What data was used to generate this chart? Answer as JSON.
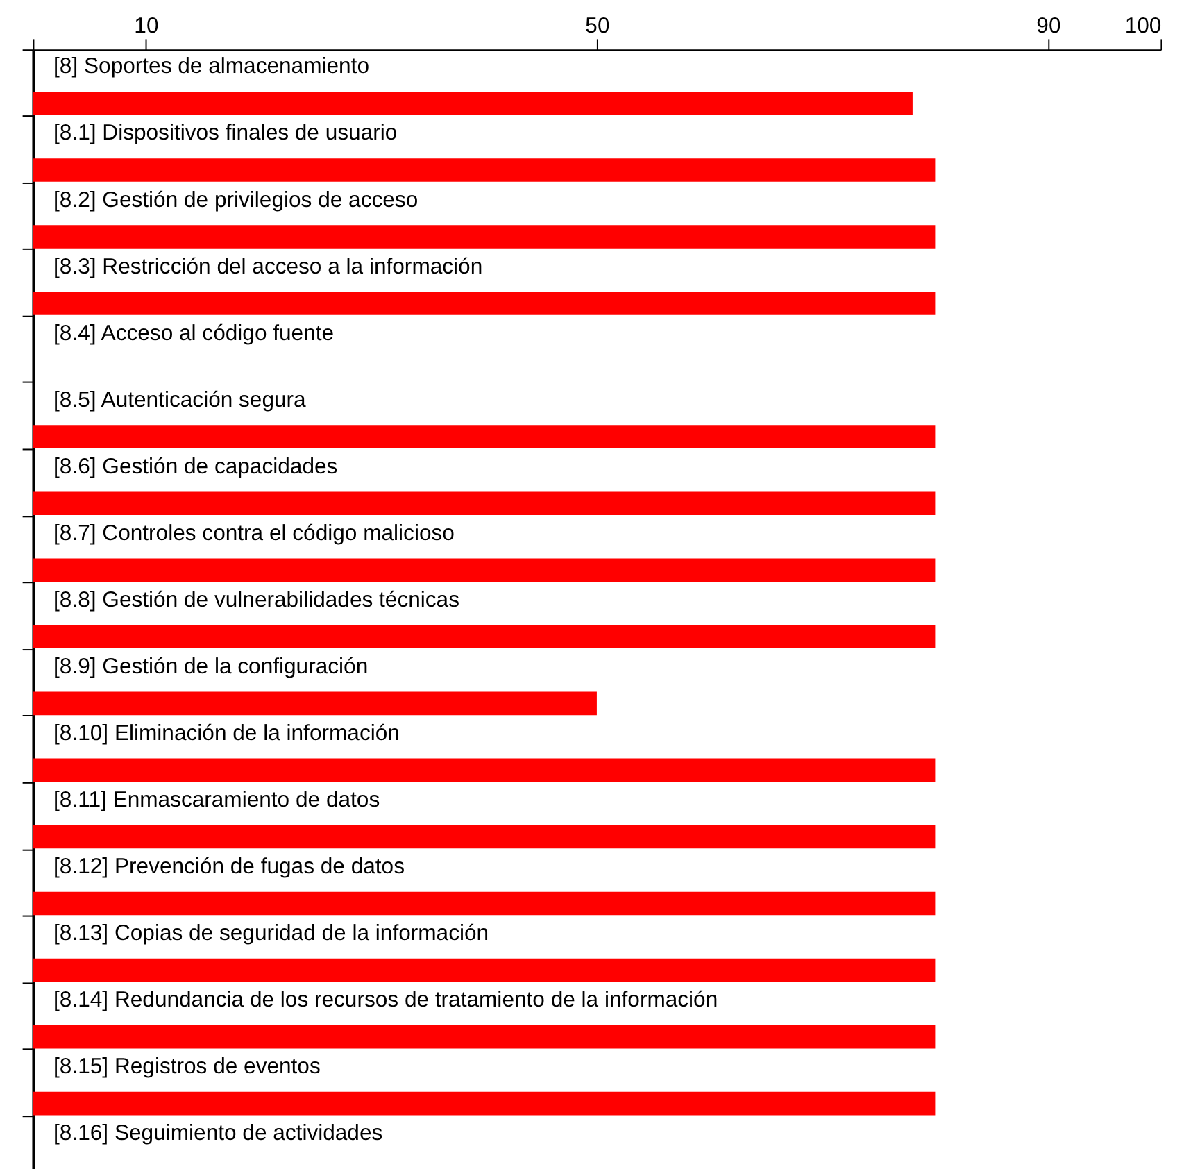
{
  "chart_data": {
    "type": "bar",
    "orientation": "horizontal",
    "categories": [
      "[8] Soportes de almacenamiento",
      "[8.1] Dispositivos finales de usuario",
      "[8.2] Gestión de privilegios de acceso",
      "[8.3] Restricción del acceso a la información",
      "[8.4] Acceso al código fuente",
      "[8.5] Autenticación segura",
      "[8.6] Gestión de capacidades",
      "[8.7] Controles contra el código malicioso",
      "[8.8] Gestión de vulnerabilidades técnicas",
      "[8.9] Gestión de la configuración",
      "[8.10] Eliminación de la información",
      "[8.11] Enmascaramiento de datos",
      "[8.12] Prevención de fugas de datos",
      "[8.13] Copias de seguridad de la información",
      "[8.14] Redundancia de los recursos de tratamiento de la información",
      "[8.15] Registros de eventos",
      "[8.16] Seguimiento de actividades"
    ],
    "values": [
      78,
      80,
      80,
      80,
      null,
      80,
      80,
      80,
      80,
      50,
      80,
      80,
      80,
      80,
      80,
      80,
      null
    ],
    "color": "#ff0000",
    "xlim": [
      0,
      100
    ],
    "xticks": [
      {
        "value": 0,
        "label": null
      },
      10,
      50,
      90,
      100
    ],
    "grid": false
  }
}
